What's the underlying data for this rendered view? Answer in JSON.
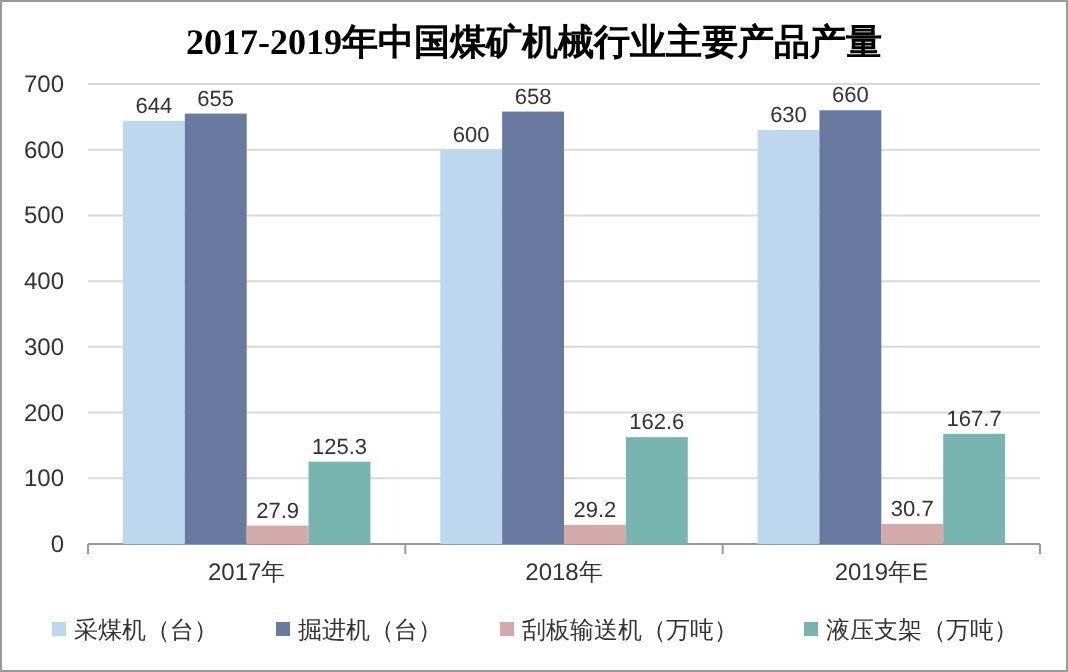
{
  "chart_data": {
    "type": "bar",
    "title": "2017-2019年中国煤矿机械行业主要产品产量",
    "categories": [
      "2017年",
      "2018年",
      "2019年E"
    ],
    "series": [
      {
        "name": "采煤机（台）",
        "color": "#bdd7ee",
        "values": [
          644,
          600,
          630
        ]
      },
      {
        "name": "掘进机（台）",
        "color": "#687a9f",
        "values": [
          655,
          658,
          660
        ]
      },
      {
        "name": "刮板输送机（万吨）",
        "color": "#d4a9a9",
        "values": [
          27.9,
          29.2,
          30.7
        ]
      },
      {
        "name": "液压支架（万吨）",
        "color": "#78b4b0",
        "values": [
          125.3,
          162.6,
          167.7
        ]
      }
    ],
    "ylim": [
      0,
      700
    ],
    "yticks": [
      0,
      100,
      200,
      300,
      400,
      500,
      600,
      700
    ],
    "grid": "y",
    "legend": "bottom",
    "data_labels": true
  }
}
